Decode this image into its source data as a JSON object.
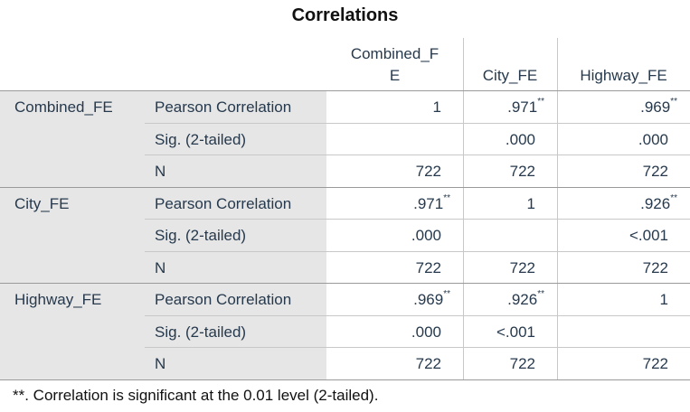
{
  "title": "Correlations",
  "columns": [
    "Combined_FE",
    "City_FE",
    "Highway_FE"
  ],
  "header_col0": [
    "Combined_F",
    "E"
  ],
  "stats": [
    "Pearson Correlation",
    "Sig. (2-tailed)",
    "N"
  ],
  "sig_marker": "**",
  "rows": [
    {
      "variable": "Combined_FE",
      "pearson": [
        "1",
        ".971",
        ".969"
      ],
      "pearson_sig": [
        "",
        "**",
        "**"
      ],
      "sig": [
        "",
        ".000",
        ".000"
      ],
      "n": [
        "722",
        "722",
        "722"
      ]
    },
    {
      "variable": "City_FE",
      "pearson": [
        ".971",
        "1",
        ".926"
      ],
      "pearson_sig": [
        "**",
        "",
        "**"
      ],
      "sig": [
        ".000",
        "",
        "<.001"
      ],
      "n": [
        "722",
        "722",
        "722"
      ]
    },
    {
      "variable": "Highway_FE",
      "pearson": [
        ".969",
        ".926",
        "1"
      ],
      "pearson_sig": [
        "**",
        "**",
        ""
      ],
      "sig": [
        ".000",
        "<.001",
        ""
      ],
      "n": [
        "722",
        "722",
        "722"
      ]
    }
  ],
  "footnote": "**. Correlation is significant at the 0.01 level (2-tailed)."
}
